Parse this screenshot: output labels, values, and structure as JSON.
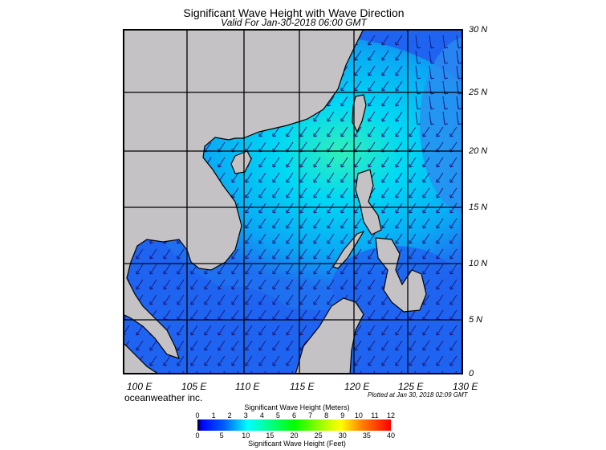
{
  "title": "Significant Wave Height with Wave Direction",
  "subtitle": "Valid For Jan-30-2018 06:00 GMT",
  "lat_labels": [
    "30 N",
    "25 N",
    "20 N",
    "15 N",
    "10 N",
    "5 N",
    "0"
  ],
  "lon_labels": [
    "100 E",
    "105 E",
    "110 E",
    "115 E",
    "120 E",
    "125 E",
    "130 E"
  ],
  "brand": "oceanweather inc.",
  "plotted": "Plotted at Jan 30, 2018 02:09 GMT",
  "colorbar": {
    "title_meters": "Significant Wave Height (Meters)",
    "title_feet": "Significant Wave Height (Feet)",
    "meters_ticks": [
      "0",
      "1",
      "2",
      "3",
      "4",
      "5",
      "6",
      "7",
      "8",
      "9",
      "10",
      "11",
      "12"
    ],
    "feet_ticks": [
      "0",
      "5",
      "10",
      "15",
      "20",
      "25",
      "30",
      "35",
      "40"
    ]
  },
  "colors": {
    "land": "#c4c2c4",
    "ocean_low": "#1e5af0",
    "ocean_mid": "#00c8f8",
    "ocean_high": "#30f0b8",
    "arrow": "#1a1a80"
  },
  "wave_direction": "southwest"
}
